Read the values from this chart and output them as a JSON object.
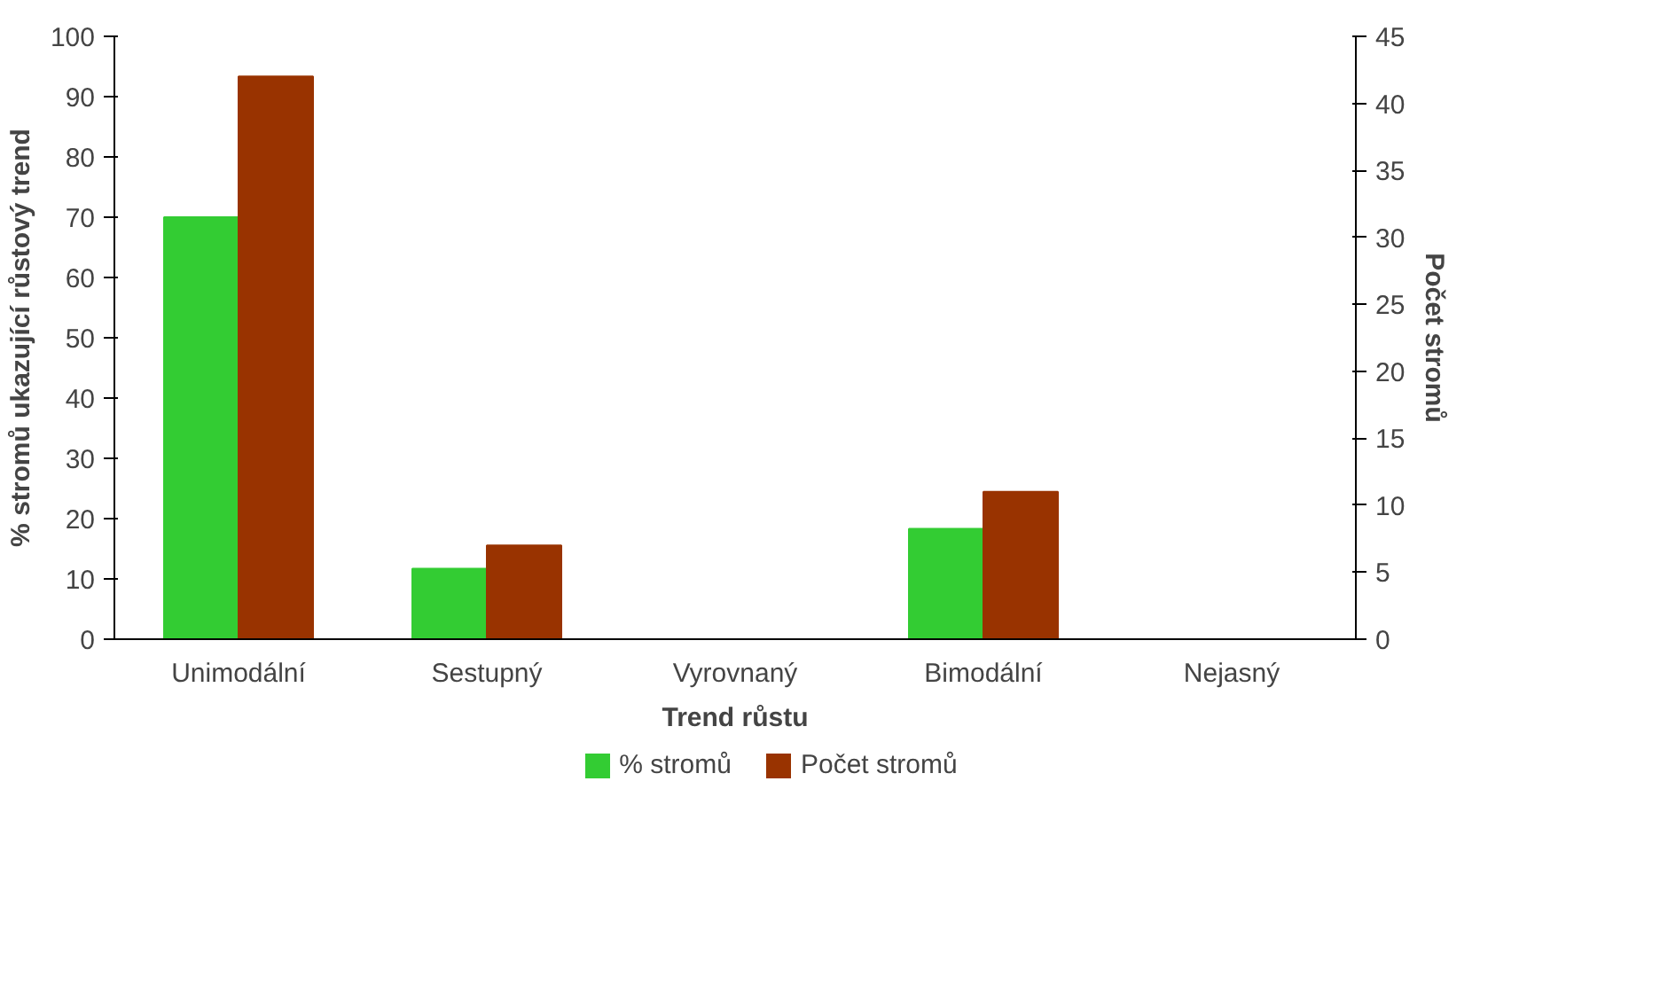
{
  "chart_data": {
    "type": "bar",
    "xlabel": "Trend růstu",
    "ylabel": "% stromů ukazující růstový trend",
    "y2label": "Počet stromů",
    "categories": [
      "Unimodální",
      "Sestupný",
      "Vyrovnaný",
      "Bimodální",
      "Nejasný"
    ],
    "series": [
      {
        "name": "% stromů",
        "color": "#33cc33",
        "values": [
          70,
          11.7,
          0,
          18.3,
          0
        ]
      },
      {
        "name": "Počet stromů",
        "color": "#993300",
        "values": [
          42,
          7,
          0,
          11,
          0
        ],
        "axis": "y2"
      }
    ],
    "ylim": [
      0,
      100
    ],
    "yticks": [
      0,
      10,
      20,
      30,
      40,
      50,
      60,
      70,
      80,
      90,
      100
    ],
    "y2lim": [
      0,
      45
    ],
    "y2ticks": [
      0,
      5,
      10,
      15,
      20,
      25,
      30,
      35,
      40,
      45
    ],
    "grid": false,
    "legend": "bottom"
  }
}
